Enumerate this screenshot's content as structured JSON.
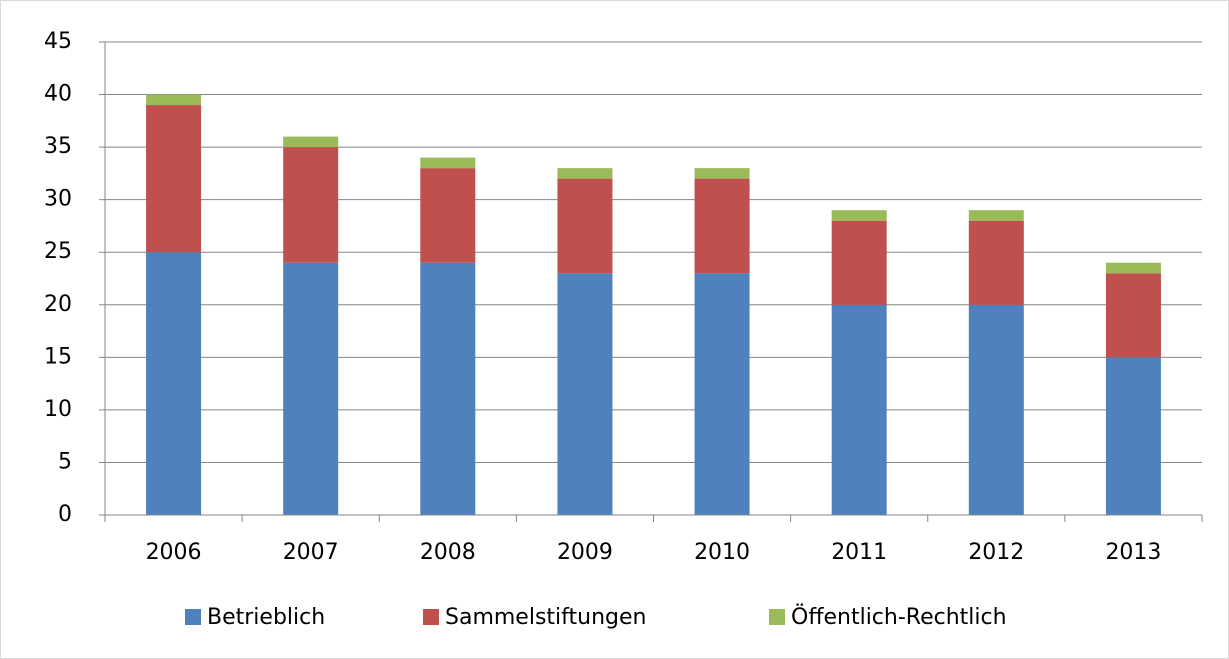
{
  "chart_data": {
    "type": "stacked_bar",
    "categories": [
      "2006",
      "2007",
      "2008",
      "2009",
      "2010",
      "2011",
      "2012",
      "2013"
    ],
    "series": [
      {
        "name": "Betrieblich",
        "color": "#4f81bd",
        "values": [
          25,
          24,
          24,
          23,
          23,
          20,
          20,
          15
        ]
      },
      {
        "name": "Sammelstiftungen",
        "color": "#c0504d",
        "values": [
          14,
          11,
          9,
          9,
          9,
          8,
          8,
          8
        ]
      },
      {
        "name": "Öffentlich-Rechtlich",
        "color": "#9bbb59",
        "values": [
          1,
          1,
          1,
          1,
          1,
          1,
          1,
          1
        ]
      }
    ],
    "ylim": [
      0,
      45
    ],
    "yticks": [
      0,
      5,
      10,
      15,
      20,
      25,
      30,
      35,
      40,
      45
    ],
    "grid": true,
    "legend": "bottom"
  }
}
